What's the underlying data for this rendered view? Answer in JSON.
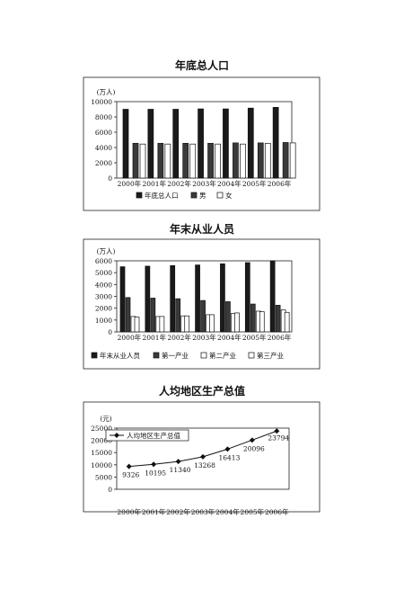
{
  "chart_data": [
    {
      "type": "bar",
      "title": "年底总人口",
      "ylabel": "(万人)",
      "ylim": [
        0,
        10000
      ],
      "yticks": [
        0,
        2000,
        4000,
        6000,
        8000,
        10000
      ],
      "categories": [
        "2000年",
        "2001年",
        "2002年",
        "2003年",
        "2004年",
        "2005年",
        "2006年"
      ],
      "series": [
        {
          "name": "年底总人口",
          "fill": "#1a1a1a",
          "values": [
            9000,
            9000,
            9000,
            9050,
            9050,
            9150,
            9250
          ]
        },
        {
          "name": "男",
          "fill": "#3a3a3a",
          "values": [
            4550,
            4550,
            4550,
            4550,
            4600,
            4600,
            4650
          ]
        },
        {
          "name": "女",
          "fill": "#ffffff",
          "values": [
            4450,
            4450,
            4450,
            4450,
            4450,
            4550,
            4600
          ]
        }
      ],
      "legend_position": "bottom",
      "grid": false
    },
    {
      "type": "bar",
      "title": "年末从业人员",
      "ylabel": "(万人)",
      "ylim": [
        0,
        6000
      ],
      "yticks": [
        0,
        1000,
        2000,
        3000,
        4000,
        5000,
        6000
      ],
      "categories": [
        "2000年",
        "2001年",
        "2002年",
        "2003年",
        "2004年",
        "2005年",
        "2006年"
      ],
      "series": [
        {
          "name": "年末从业人员",
          "fill": "#1a1a1a",
          "values": [
            5500,
            5550,
            5600,
            5650,
            5750,
            5850,
            6000
          ]
        },
        {
          "name": "第一产业",
          "fill": "#3a3a3a",
          "values": [
            2900,
            2850,
            2800,
            2650,
            2550,
            2350,
            2250
          ]
        },
        {
          "name": "第二产业",
          "fill": "#ffffff",
          "values": [
            1300,
            1300,
            1350,
            1450,
            1550,
            1750,
            1850
          ]
        },
        {
          "name": "第三产业",
          "fill": "#ffffff",
          "values": [
            1250,
            1300,
            1350,
            1450,
            1600,
            1700,
            1650
          ]
        }
      ],
      "legend_position": "bottom",
      "grid": false
    },
    {
      "type": "line",
      "title": "人均地区生产总值",
      "ylabel": "(元)",
      "ylim": [
        0,
        25000
      ],
      "yticks": [
        0,
        5000,
        10000,
        15000,
        20000,
        25000
      ],
      "categories": [
        "2000年",
        "2001年",
        "2002年",
        "2003年",
        "2004年",
        "2005年",
        "2006年"
      ],
      "series": [
        {
          "name": "人均地区生产总值",
          "values": [
            9326,
            10195,
            11340,
            13268,
            16413,
            20096,
            23794
          ]
        }
      ],
      "data_labels": [
        "9326",
        "10195",
        "11340",
        "13268",
        "16413",
        "20096",
        "23794"
      ],
      "legend_position": "top-left",
      "grid": false
    }
  ]
}
